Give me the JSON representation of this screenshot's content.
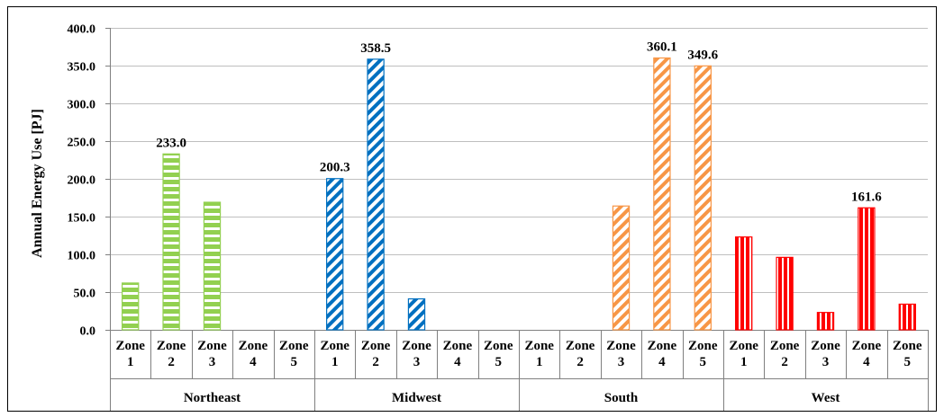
{
  "chart_data": {
    "type": "bar",
    "ylabel": "Annual Energy Use [PJ]",
    "xlabel": "",
    "ylim": [
      0,
      400
    ],
    "ytick_step": 50,
    "ytick_labels": [
      "0.0",
      "50.0",
      "100.0",
      "150.0",
      "200.0",
      "250.0",
      "300.0",
      "350.0",
      "400.0"
    ],
    "grid": true,
    "groups": [
      {
        "name": "Northeast",
        "color": "#92d050",
        "pattern": "horizontal-stripes",
        "categories": [
          [
            "Zone",
            "1"
          ],
          [
            "Zone",
            "2"
          ],
          [
            "Zone",
            "3"
          ],
          [
            "Zone",
            "4"
          ],
          [
            "Zone",
            "5"
          ]
        ],
        "values": [
          62,
          233.0,
          169,
          0,
          0
        ],
        "data_labels": [
          null,
          "233.0",
          null,
          null,
          null
        ]
      },
      {
        "name": "Midwest",
        "color": "#0070c0",
        "pattern": "diagonal-stripes",
        "categories": [
          [
            "Zone",
            "1"
          ],
          [
            "Zone",
            "2"
          ],
          [
            "Zone",
            "3"
          ],
          [
            "Zone",
            "4"
          ],
          [
            "Zone",
            "5"
          ]
        ],
        "values": [
          200.3,
          358.5,
          41,
          0,
          0
        ],
        "data_labels": [
          "200.3",
          "358.5",
          null,
          null,
          null
        ]
      },
      {
        "name": "South",
        "color": "#f79646",
        "pattern": "diagonal-stripes",
        "categories": [
          [
            "Zone",
            "1"
          ],
          [
            "Zone",
            "2"
          ],
          [
            "Zone",
            "3"
          ],
          [
            "Zone",
            "4"
          ],
          [
            "Zone",
            "5"
          ]
        ],
        "values": [
          0,
          0,
          164,
          360.1,
          349.6
        ],
        "data_labels": [
          null,
          null,
          null,
          "360.1",
          "349.6"
        ]
      },
      {
        "name": "West",
        "color": "#ff0000",
        "pattern": "vertical-stripes",
        "categories": [
          [
            "Zone",
            "1"
          ],
          [
            "Zone",
            "2"
          ],
          [
            "Zone",
            "3"
          ],
          [
            "Zone",
            "4"
          ],
          [
            "Zone",
            "5"
          ]
        ],
        "values": [
          123,
          96,
          23,
          161.6,
          34
        ],
        "data_labels": [
          null,
          null,
          null,
          "161.6",
          null
        ]
      }
    ]
  }
}
